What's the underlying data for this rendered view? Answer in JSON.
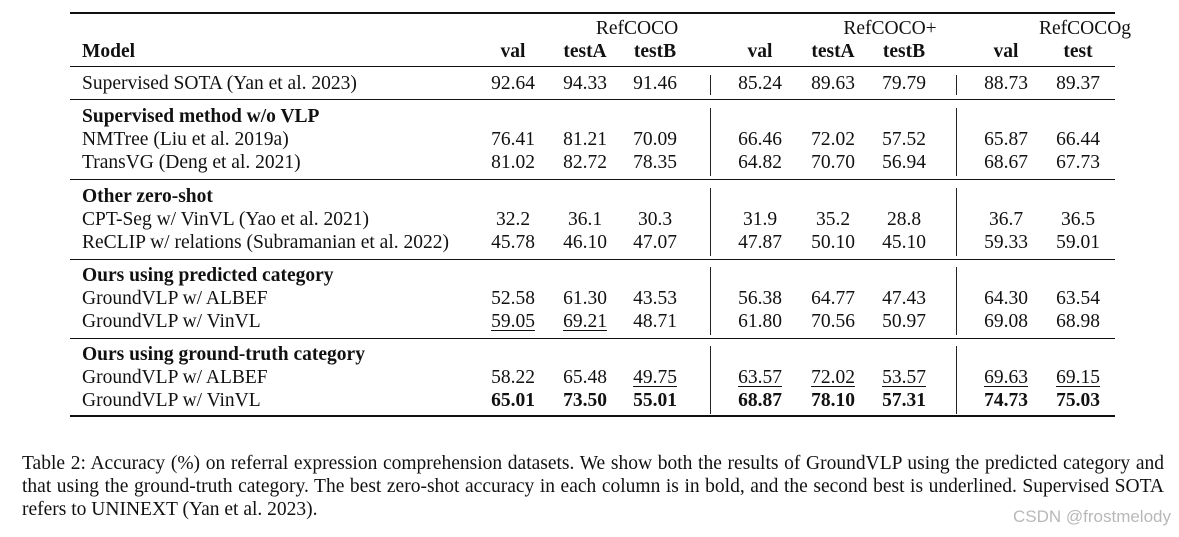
{
  "table": {
    "model_header": "Model",
    "groups": [
      {
        "name": "RefCOCO",
        "cols": [
          "val",
          "testA",
          "testB"
        ]
      },
      {
        "name": "RefCOCO+",
        "cols": [
          "val",
          "testA",
          "testB"
        ]
      },
      {
        "name": "RefCOCOg",
        "cols": [
          "val",
          "test"
        ]
      }
    ],
    "sota": {
      "model": "Supervised SOTA (Yan et al. 2023)",
      "values": [
        "92.64",
        "94.33",
        "91.46",
        "85.24",
        "89.63",
        "79.79",
        "88.73",
        "89.37"
      ]
    },
    "sections": [
      {
        "title": "Supervised method w/o VLP",
        "rows": [
          {
            "model": "NMTree (Liu et al. 2019a)",
            "values": [
              "76.41",
              "81.21",
              "70.09",
              "66.46",
              "72.02",
              "57.52",
              "65.87",
              "66.44"
            ]
          },
          {
            "model": "TransVG (Deng et al. 2021)",
            "values": [
              "81.02",
              "82.72",
              "78.35",
              "64.82",
              "70.70",
              "56.94",
              "68.67",
              "67.73"
            ]
          }
        ]
      },
      {
        "title": "Other zero-shot",
        "rows": [
          {
            "model": "CPT-Seg w/ VinVL (Yao et al. 2021)",
            "values": [
              "32.2",
              "36.1",
              "30.3",
              "31.9",
              "35.2",
              "28.8",
              "36.7",
              "36.5"
            ]
          },
          {
            "model": "ReCLIP w/ relations (Subramanian et al. 2022)",
            "values": [
              "45.78",
              "46.10",
              "47.07",
              "47.87",
              "50.10",
              "45.10",
              "59.33",
              "59.01"
            ]
          }
        ]
      },
      {
        "title": "Ours using predicted category",
        "rows": [
          {
            "model": "GroundVLP w/ ALBEF",
            "values": [
              "52.58",
              "61.30",
              "43.53",
              "56.38",
              "64.77",
              "47.43",
              "64.30",
              "63.54"
            ]
          },
          {
            "model": "GroundVLP w/ VinVL",
            "values": [
              "59.05",
              "69.21",
              "48.71",
              "61.80",
              "70.56",
              "50.97",
              "69.08",
              "68.98"
            ],
            "underline": [
              0,
              1
            ]
          }
        ]
      },
      {
        "title": "Ours using ground-truth category",
        "rows": [
          {
            "model": "GroundVLP w/ ALBEF",
            "values": [
              "58.22",
              "65.48",
              "49.75",
              "63.57",
              "72.02",
              "53.57",
              "69.63",
              "69.15"
            ],
            "underline": [
              2,
              3,
              4,
              5,
              6,
              7
            ]
          },
          {
            "model": "GroundVLP w/ VinVL",
            "values": [
              "65.01",
              "73.50",
              "55.01",
              "68.87",
              "78.10",
              "57.31",
              "74.73",
              "75.03"
            ],
            "bold": [
              0,
              1,
              2,
              3,
              4,
              5,
              6,
              7
            ]
          }
        ]
      }
    ]
  },
  "caption": "Table 2: Accuracy (%) on referral expression comprehension datasets. We show both the results of GroundVLP using the predicted category and that using the ground-truth category. The best zero-shot accuracy in each column is in bold, and the second best is underlined. Supervised SOTA refers to UNINEXT (Yan et al. 2023).",
  "watermark": "CSDN @frostmelody"
}
